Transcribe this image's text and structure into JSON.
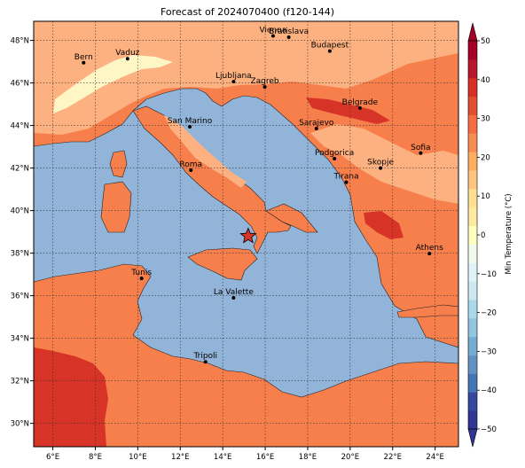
{
  "title": "Forecast of 2024070400 (f120-144)",
  "map": {
    "lat_ticks": [
      "48°N",
      "46°N",
      "44°N",
      "42°N",
      "40°N",
      "38°N",
      "36°N",
      "34°N",
      "32°N",
      "30°N"
    ],
    "lon_ticks": [
      "6°E",
      "8°E",
      "10°E",
      "12°E",
      "14°E",
      "16°E",
      "18°E",
      "20°E",
      "22°E",
      "24°E"
    ],
    "lon_range": [
      5.1,
      25.1
    ],
    "lat_range": [
      28.9,
      48.9
    ],
    "grid": true,
    "sea_color": "#92b4d8",
    "land_colors": {
      "warm_orange": "#f67f4c",
      "light_orange": "#fdb180",
      "red": "#d83327",
      "pale_yellow": "#fef6c4"
    }
  },
  "cities": [
    {
      "name": "Bern",
      "lon": 7.45,
      "lat": 46.95
    },
    {
      "name": "Vaduz",
      "lon": 9.52,
      "lat": 47.14
    },
    {
      "name": "Vienna",
      "lon": 16.37,
      "lat": 48.21
    },
    {
      "name": "Bratislava",
      "lon": 17.11,
      "lat": 48.15
    },
    {
      "name": "Budapest",
      "lon": 19.04,
      "lat": 47.5
    },
    {
      "name": "Ljubljana",
      "lon": 14.51,
      "lat": 46.06
    },
    {
      "name": "Zagreb",
      "lon": 15.98,
      "lat": 45.81
    },
    {
      "name": "Belgrade",
      "lon": 20.46,
      "lat": 44.82
    },
    {
      "name": "San Marino",
      "lon": 12.45,
      "lat": 43.94
    },
    {
      "name": "Sarajevo",
      "lon": 18.41,
      "lat": 43.86
    },
    {
      "name": "Sofia",
      "lon": 23.32,
      "lat": 42.7
    },
    {
      "name": "Podgorica",
      "lon": 19.26,
      "lat": 42.44
    },
    {
      "name": "Skopje",
      "lon": 21.43,
      "lat": 42.0
    },
    {
      "name": "Roma",
      "lon": 12.5,
      "lat": 41.9
    },
    {
      "name": "Tirana",
      "lon": 19.82,
      "lat": 41.33
    },
    {
      "name": "Athens",
      "lon": 23.73,
      "lat": 37.98
    },
    {
      "name": "Tunis",
      "lon": 10.18,
      "lat": 36.81
    },
    {
      "name": "La Valette",
      "lon": 14.51,
      "lat": 35.9
    },
    {
      "name": "Tripoli",
      "lon": 13.19,
      "lat": 32.89
    }
  ],
  "marker": {
    "type": "star",
    "lon": 15.2,
    "lat": 38.8,
    "color": "#d83327"
  },
  "colorbar": {
    "label": "Min Temperature (°C)",
    "ticks": [
      "50",
      "40",
      "30",
      "20",
      "10",
      "0",
      "−10",
      "−20",
      "−30",
      "−40",
      "−50"
    ],
    "levels": [
      -50,
      -45,
      -40,
      -35,
      -30,
      -25,
      -20,
      -15,
      -10,
      -5,
      0,
      5,
      10,
      15,
      20,
      25,
      30,
      35,
      40,
      45,
      50
    ],
    "colors": [
      "#313695",
      "#36479e",
      "#4575b4",
      "#6491c2",
      "#74add1",
      "#92c5de",
      "#abd9e9",
      "#cce8f1",
      "#e0f3f8",
      "#f0f9ea",
      "#ffffbf",
      "#fee9a0",
      "#fee090",
      "#fdc482",
      "#fdae61",
      "#f88d52",
      "#f46d43",
      "#e04f30",
      "#d73027",
      "#b7182a",
      "#a50026"
    ],
    "extend": "both"
  }
}
